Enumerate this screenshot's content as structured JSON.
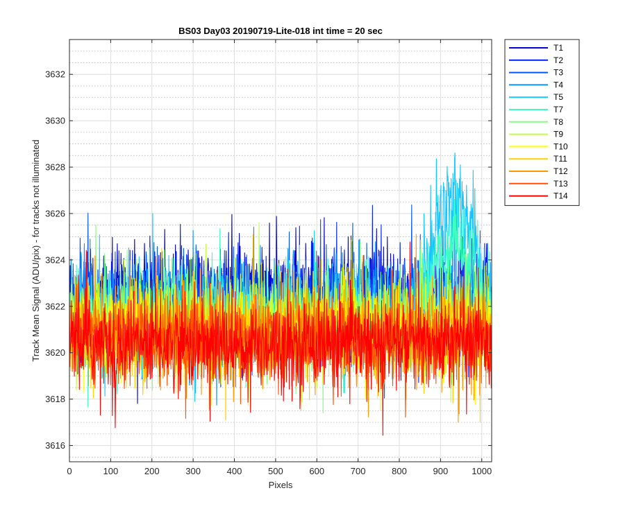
{
  "chart_data": {
    "type": "line",
    "title": "BS03 Day03 20190719-Lite-018 int time = 20 sec",
    "xlabel": "Pixels",
    "ylabel": "Track Mean Signal (ADU/pix) - for tracks not illuminated",
    "xlim": [
      0,
      1024
    ],
    "ylim": [
      3615.3,
      3633.5
    ],
    "xticks": [
      0,
      100,
      200,
      300,
      400,
      500,
      600,
      700,
      800,
      900,
      1000
    ],
    "yticks": [
      3616,
      3618,
      3620,
      3622,
      3624,
      3626,
      3628,
      3630,
      3632
    ],
    "grid": true,
    "minor_grid_y": true,
    "legend_position": "outside-right",
    "n_points": 1024,
    "series": [
      {
        "name": "T1",
        "color": "#0000d0",
        "base": 3622.4,
        "noise": 1.3
      },
      {
        "name": "T2",
        "color": "#0020f0",
        "base": 3622.2,
        "noise": 1.3
      },
      {
        "name": "T3",
        "color": "#0055ff",
        "base": 3622.0,
        "noise": 1.25
      },
      {
        "name": "T4",
        "color": "#0a90ff",
        "base": 3621.8,
        "noise": 1.25
      },
      {
        "name": "T5",
        "color": "#14c8ff",
        "base": 3621.6,
        "noise": 1.2,
        "rise": 6.5
      },
      {
        "name": "T7",
        "color": "#3cffc0",
        "base": 3621.5,
        "noise": 1.2,
        "rise": 3.8
      },
      {
        "name": "T8",
        "color": "#80ff80",
        "base": 3621.3,
        "noise": 1.2
      },
      {
        "name": "T9",
        "color": "#c0ff40",
        "base": 3621.2,
        "noise": 1.2
      },
      {
        "name": "T10",
        "color": "#ffff00",
        "base": 3621.0,
        "noise": 1.2
      },
      {
        "name": "T11",
        "color": "#ffd000",
        "base": 3620.9,
        "noise": 1.2
      },
      {
        "name": "T12",
        "color": "#ff9800",
        "base": 3620.7,
        "noise": 1.2
      },
      {
        "name": "T13",
        "color": "#ff5000",
        "base": 3620.5,
        "noise": 1.2
      },
      {
        "name": "T14",
        "color": "#ff0000",
        "base": 3620.4,
        "noise": 1.25
      }
    ]
  }
}
